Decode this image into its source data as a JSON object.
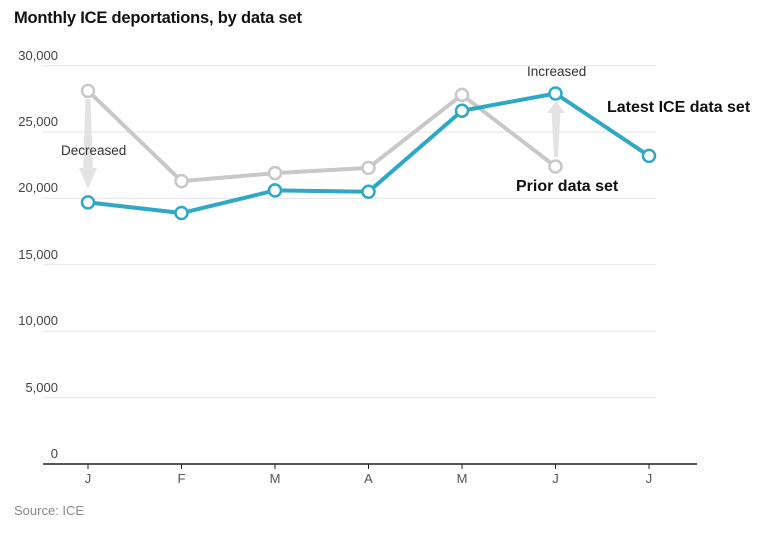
{
  "title": "Monthly ICE deportations, by data set",
  "source": "Source: ICE",
  "annotations": {
    "decreased": "Decreased",
    "increased": "Increased",
    "latest_label": "Latest ICE data set",
    "prior_label": "Prior data set"
  },
  "colors": {
    "latest": "#2fa8c6",
    "prior": "#c8c8c8",
    "grid": "#e4e4e4",
    "axis": "#222222",
    "arrow": "#e3e3e3"
  },
  "chart_data": {
    "type": "line",
    "x": [
      "J",
      "F",
      "M",
      "A",
      "M",
      "J",
      "J"
    ],
    "series": [
      {
        "name": "Prior data set",
        "color": "#c8c8c8",
        "values": [
          28100,
          21300,
          21900,
          22300,
          27800,
          22400,
          null
        ]
      },
      {
        "name": "Latest ICE data set",
        "color": "#2fa8c6",
        "values": [
          19700,
          18900,
          20600,
          20500,
          26600,
          27900,
          23200
        ]
      }
    ],
    "title": "Monthly ICE deportations, by data set",
    "xlabel": "",
    "ylabel": "",
    "ylim": [
      0,
      30000
    ],
    "y_ticks": [
      0,
      5000,
      10000,
      15000,
      20000,
      25000,
      30000
    ],
    "grid": true,
    "legend_position": "inline-annotations"
  }
}
